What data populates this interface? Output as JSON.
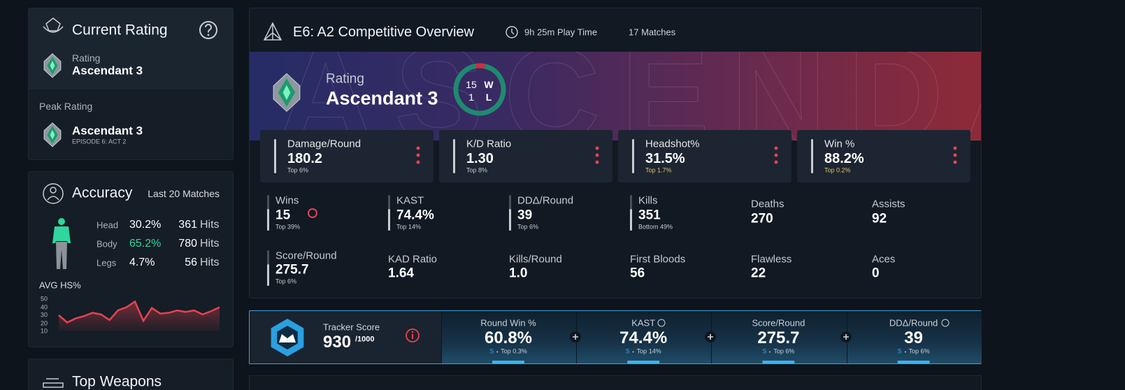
{
  "current_rating": {
    "title": "Current Rating",
    "rating_label": "Rating",
    "rating": "Ascendant 3",
    "peak_label": "Peak Rating",
    "peak_rating": "Ascendant 3",
    "peak_episode": "EPISODE 6: ACT 2"
  },
  "accuracy": {
    "title": "Accuracy",
    "period": "Last 20 Matches",
    "rows": [
      {
        "part": "Head",
        "percent": "30.2%",
        "hits": 361,
        "hits_unit": "Hits"
      },
      {
        "part": "Body",
        "percent": "65.2%",
        "hits": 780,
        "hits_unit": "Hits"
      },
      {
        "part": "Legs",
        "percent": "4.7%",
        "hits": 56,
        "hits_unit": "Hits"
      }
    ],
    "hs_chart": {
      "type": "line",
      "title": "AVG HS%",
      "values": [
        30,
        21,
        26,
        29,
        33,
        31,
        24,
        36,
        40,
        47,
        23,
        39,
        32,
        33,
        36,
        34,
        36,
        31,
        35,
        40
      ],
      "ylim": [
        10,
        50
      ],
      "yticks": [
        10,
        20,
        30,
        40,
        50
      ],
      "color": "#e8424f"
    }
  },
  "top_weapons": {
    "title": "Top Weapons"
  },
  "overview": {
    "title": "E6: A2 Competitive Overview",
    "play_time": "9h 25m Play Time",
    "matches": "17 Matches",
    "banner_text": "ASCENDANT",
    "rating_label": "Rating",
    "rating": "Ascendant 3",
    "record": {
      "wins": 15,
      "wins_label": "W",
      "losses": 1,
      "losses_label": "L"
    },
    "featured": [
      {
        "label": "Damage/Round",
        "value": "180.2",
        "rank": "Top 6%"
      },
      {
        "label": "K/D Ratio",
        "value": "1.30",
        "rank": "Top 8%"
      },
      {
        "label": "Headshot%",
        "value": "31.5%",
        "rank": "Top 1.7%"
      },
      {
        "label": "Win %",
        "value": "88.2%",
        "rank": "Top 0.2%"
      }
    ],
    "stats": [
      {
        "label": "Wins",
        "value": "15",
        "rank": "Top 39%"
      },
      {
        "label": "KAST",
        "value": "74.4%",
        "rank": "Top 14%"
      },
      {
        "label": "DDΔ/Round",
        "value": "39",
        "rank": "Top 6%"
      },
      {
        "label": "Kills",
        "value": "351",
        "rank": "Bottom 49%"
      },
      {
        "label": "Deaths",
        "value": "270"
      },
      {
        "label": "Assists",
        "value": "92"
      },
      {
        "label": "Score/Round",
        "value": "275.7",
        "rank": "Top 6%"
      },
      {
        "label": "KAD Ratio",
        "value": "1.64"
      },
      {
        "label": "Kills/Round",
        "value": "1.0"
      },
      {
        "label": "First Bloods",
        "value": "56"
      },
      {
        "label": "Flawless",
        "value": "22"
      },
      {
        "label": "Aces",
        "value": "0"
      }
    ]
  },
  "tracker": {
    "title": "Tracker Score",
    "score": 930,
    "max": "/1000",
    "metrics": [
      {
        "label": "Round Win %",
        "value": "60.8%",
        "grade": "S",
        "rank": "Top 0.3%"
      },
      {
        "label": "KAST",
        "value": "74.4%",
        "grade": "S",
        "rank": "Top 14%"
      },
      {
        "label": "Score/Round",
        "value": "275.7",
        "grade": "S",
        "rank": "Top 6%"
      },
      {
        "label": "DDΔ/Round",
        "value": "39",
        "grade": "S",
        "rank": "Top 6%"
      }
    ]
  }
}
